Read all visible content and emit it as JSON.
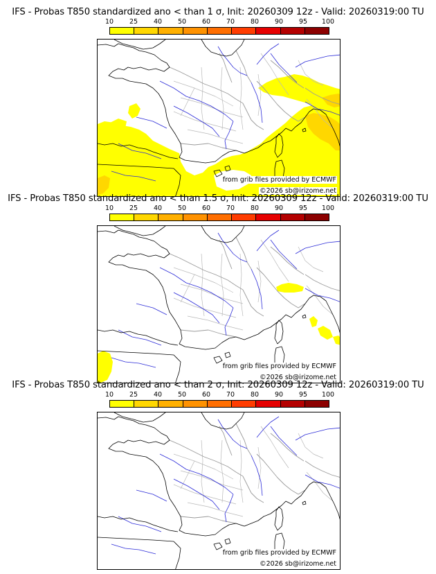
{
  "panels": [
    {
      "title": "IFS - Probas T850  standardized ano < than 1 σ, Init: 20260309 12z - Valid: 20260319:00 TU",
      "source": "from grib files provided by ECMWF",
      "copyright": "©2026 sb@irizome.net",
      "shading": "large"
    },
    {
      "title": "IFS - Probas T850  standardized ano < than 1.5 σ, Init: 20260309 12z - Valid: 20260319:00 TU",
      "source": "from grib files provided by ECMWF",
      "copyright": "©2026 sb@irizome.net",
      "shading": "small"
    },
    {
      "title": "IFS - Probas T850  standardized ano < than 2 σ, Init: 20260309 12z - Valid: 20260319:00 TU",
      "source": "from grib files provided by ECMWF",
      "copyright": "©2026 sb@irizome.net",
      "shading": "none"
    }
  ],
  "legend": {
    "labels": [
      "10",
      "25",
      "40",
      "50",
      "60",
      "70",
      "80",
      "90",
      "95",
      "100"
    ],
    "colors": [
      "#ffff00",
      "#ffd700",
      "#ffb000",
      "#ff9200",
      "#ff6e00",
      "#ff3c00",
      "#e60000",
      "#b40000",
      "#8c0000",
      "#550000"
    ]
  }
}
